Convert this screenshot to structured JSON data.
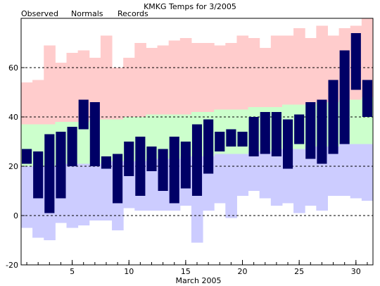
{
  "chart_data": {
    "type": "bar",
    "title": "KMKG Temps for 3/2005",
    "xlabel": "March 2005",
    "ylabel": "",
    "ylim": [
      -20,
      80
    ],
    "yticks": [
      -20,
      0,
      20,
      40,
      60
    ],
    "xticks": [
      5,
      10,
      15,
      20,
      25,
      30
    ],
    "grid": "horizontal dashed at 20, 40, 60",
    "legend": "top-left, horizontal",
    "legend_items": [
      {
        "name": "Observed",
        "color": "#000066"
      },
      {
        "name": "Normals",
        "color": "#008000"
      },
      {
        "name": "Records",
        "color": "#e88ab0"
      }
    ],
    "colors": {
      "observed": "#000066",
      "normals": "#ccffcc",
      "records_high": "#ffcccc",
      "records_low": "#ccccff",
      "grid": "#000000"
    },
    "days": [
      1,
      2,
      3,
      4,
      5,
      6,
      7,
      8,
      9,
      10,
      11,
      12,
      13,
      14,
      15,
      16,
      17,
      18,
      19,
      20,
      21,
      22,
      23,
      24,
      25,
      26,
      27,
      28,
      29,
      30,
      31
    ],
    "observed_high": [
      27,
      26,
      33,
      34,
      36,
      47,
      46,
      24,
      25,
      30,
      32,
      28,
      27,
      32,
      30,
      37,
      39,
      34,
      35,
      34,
      40,
      42,
      42,
      39,
      41,
      46,
      47,
      55,
      67,
      74,
      55
    ],
    "observed_low": [
      21,
      7,
      1,
      7,
      20,
      35,
      20,
      19,
      5,
      16,
      8,
      18,
      10,
      5,
      11,
      8,
      17,
      26,
      28,
      28,
      24,
      25,
      24,
      19,
      29,
      23,
      21,
      25,
      29,
      51,
      40
    ],
    "normal_high": [
      37,
      37,
      37,
      38,
      38,
      38,
      39,
      39,
      39,
      40,
      40,
      41,
      41,
      41,
      41,
      42,
      42,
      43,
      43,
      43,
      44,
      44,
      44,
      45,
      45,
      45,
      46,
      46,
      47,
      47,
      48
    ],
    "normal_low": [
      20,
      20,
      20,
      21,
      21,
      21,
      21,
      22,
      22,
      22,
      22,
      23,
      23,
      23,
      24,
      24,
      24,
      25,
      25,
      25,
      26,
      26,
      27,
      27,
      27,
      28,
      28,
      28,
      29,
      29,
      29
    ],
    "record_high": [
      54,
      55,
      69,
      62,
      66,
      67,
      64,
      73,
      60,
      64,
      70,
      68,
      69,
      71,
      72,
      70,
      70,
      69,
      70,
      73,
      72,
      68,
      73,
      73,
      76,
      72,
      77,
      73,
      76,
      77,
      80
    ],
    "record_low": [
      -5,
      -9,
      -10,
      -3,
      -5,
      -4,
      -2,
      -2,
      -6,
      3,
      2,
      2,
      2,
      2,
      4,
      -11,
      2,
      5,
      -1,
      8,
      10,
      7,
      4,
      5,
      1,
      4,
      2,
      8,
      8,
      7,
      6
    ]
  }
}
